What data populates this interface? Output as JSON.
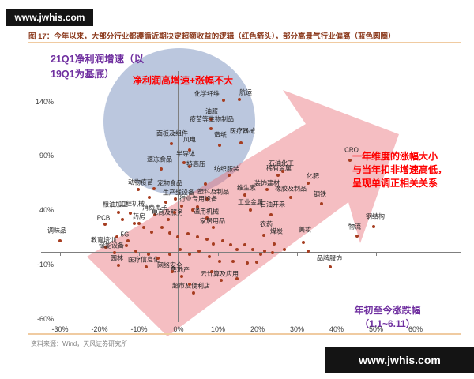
{
  "watermark": {
    "text": "www.jwhis.com"
  },
  "title": "图 17：今年以来，大部分行业都遵循近期决定超额收益的逻辑（红色箭头），部分高景气行业偏离（蓝色圆圈）",
  "source": "资料来源：Wind，天风证券研究所",
  "colors": {
    "circle_blue": "rgba(141,162,200,0.6)",
    "arrow_pink": "rgba(232,110,120,0.45)",
    "axis_gray": "#7f7f7f",
    "dot_red": "#a63d20",
    "annotation_red": "#fe0000",
    "annotation_purple": "#7030a0",
    "title_brown": "#8c3b1e"
  },
  "annotations": {
    "y_axis_title_line1": "21Q1净利润增速（以",
    "y_axis_title_line2": "19Q1为基底）",
    "blue_note": "净利润高增速+涨幅不大",
    "right_note_line1": "一年维度的涨幅大小",
    "right_note_line2": "与当年扣非增速高低，",
    "right_note_line3": "呈现单调正相关关系",
    "x_axis_title_line1": "年初至今涨跌幅",
    "x_axis_title_line2": "（1.1~6.11）"
  },
  "chart_data": {
    "type": "scatter",
    "title": "",
    "xlabel": "年初至今涨跌幅（1.1~6.11）",
    "ylabel": "21Q1净利润增速（以19Q1为基底）",
    "xlim": [
      -35,
      65
    ],
    "ylim": [
      -70,
      160
    ],
    "grid": false,
    "x_ticks": [
      -30,
      -20,
      -10,
      0,
      10,
      20,
      30,
      40,
      50,
      60
    ],
    "y_ticks": [
      140,
      90,
      40,
      -10,
      -60
    ],
    "points": [
      {
        "label": "化学纤维",
        "x": 11.4,
        "y": 141,
        "lox": -21,
        "loy": -8
      },
      {
        "label": "航运",
        "x": 15.4,
        "y": 142,
        "lox": 8,
        "loy": -9
      },
      {
        "label": "油服",
        "x": 8.2,
        "y": 124,
        "lox": 1,
        "loy": -10
      },
      {
        "label": "疫苗等生物制品",
        "x": 8.2,
        "y": 115,
        "lox": 1,
        "loy": -12
      },
      {
        "label": "面板及组件",
        "x": -1.8,
        "y": 101,
        "lox": 1,
        "loy": -13
      },
      {
        "label": "医疗器械",
        "x": 15.8,
        "y": 102,
        "lox": 2,
        "loy": -15
      },
      {
        "label": "造纸",
        "x": 10.4,
        "y": 100,
        "lox": 1,
        "loy": -13
      },
      {
        "label": "风电",
        "x": 2.8,
        "y": 95,
        "lox": 0,
        "loy": -13
      },
      {
        "label": "半导体",
        "x": 1.4,
        "y": 84,
        "lox": 2,
        "loy": -11
      },
      {
        "label": "速冻食品",
        "x": -4.4,
        "y": 78,
        "lox": -2,
        "loy": -12
      },
      {
        "label": "特高压",
        "x": 2.8,
        "y": 80,
        "lox": 8,
        "loy": -3
      },
      {
        "label": "动物疫苗",
        "x": -10.2,
        "y": 59,
        "lox": 3,
        "loy": -9
      },
      {
        "label": "宠物食品",
        "x": -6.2,
        "y": 60,
        "lox": 20,
        "loy": -7
      },
      {
        "label": "生产线设备",
        "x": -0.8,
        "y": 50,
        "lox": 4,
        "loy": -8
      },
      {
        "label": "塑料及制品",
        "x": 7.2,
        "y": 50,
        "lox": 8,
        "loy": -9
      },
      {
        "label": "行业专用设备",
        "x": 4.8,
        "y": 43,
        "lox": 1,
        "loy": -10
      },
      {
        "label": "维生素",
        "x": 16.8,
        "y": 54,
        "lox": 2,
        "loy": -9
      },
      {
        "label": "装饰建材",
        "x": 22.4,
        "y": 59,
        "lox": 0,
        "loy": -8
      },
      {
        "label": "稀有金属",
        "x": 25.2,
        "y": 72,
        "lox": 1,
        "loy": -9
      },
      {
        "label": "石油化工",
        "x": 26.4,
        "y": 76,
        "lox": -2,
        "loy": -10
      },
      {
        "label": "化肥",
        "x": 32.8,
        "y": 65,
        "lox": 6,
        "loy": -9
      },
      {
        "label": "橡胶及制品",
        "x": 28.4,
        "y": 52,
        "lox": 0,
        "loy": -11
      },
      {
        "label": "钢铁",
        "x": 36.2,
        "y": 46,
        "lox": -2,
        "loy": -12
      },
      {
        "label": "工业金属",
        "x": 18.2,
        "y": 40,
        "lox": 0,
        "loy": -10
      },
      {
        "label": "石油开采",
        "x": 23.4,
        "y": 36,
        "lox": 2,
        "loy": -13
      },
      {
        "label": "农药",
        "x": 21.6,
        "y": 17,
        "lox": 3,
        "loy": -14
      },
      {
        "label": "煤炭",
        "x": 24.2,
        "y": 9,
        "lox": 3,
        "loy": -16
      },
      {
        "label": "美妆",
        "x": 31.6,
        "y": 10,
        "lox": 2,
        "loy": -16
      },
      {
        "label": "物流",
        "x": 45.2,
        "y": 16,
        "lox": -3,
        "loy": -12
      },
      {
        "label": "钢结构",
        "x": 49.4,
        "y": 25,
        "lox": 2,
        "loy": -13
      },
      {
        "label": "品牌服饰",
        "x": 38.4,
        "y": -12,
        "lox": -1,
        "loy": -11
      },
      {
        "label": "CRO",
        "x": 43.4,
        "y": 86,
        "lox": 2,
        "loy": -13
      },
      {
        "label": "粮油加工",
        "x": -15.2,
        "y": 38,
        "lox": -4,
        "loy": -10
      },
      {
        "label": "工程机械",
        "x": -12.2,
        "y": 37,
        "lox": 2,
        "loy": -12
      },
      {
        "label": "消费电子",
        "x": -6,
        "y": 36,
        "lox": 0,
        "loy": -9
      },
      {
        "label": "电商及服务",
        "x": -2.6,
        "y": 31,
        "lox": -1,
        "loy": -9
      },
      {
        "label": "PCB",
        "x": -18.6,
        "y": 27,
        "lox": -2,
        "loy": -8
      },
      {
        "label": "药房",
        "x": -10,
        "y": 28,
        "lox": 0,
        "loy": -9
      },
      {
        "label": "调味品",
        "x": -30,
        "y": 12,
        "lox": -4,
        "loy": -13
      },
      {
        "label": "教育培训",
        "x": -18.4,
        "y": 6,
        "lox": -3,
        "loy": -9
      },
      {
        "label": "储能设备",
        "x": -16.2,
        "y": 1,
        "lox": -4,
        "loy": -9
      },
      {
        "label": "5G",
        "x": -12.8,
        "y": 12,
        "lox": -4,
        "loy": -8
      },
      {
        "label": "通用机械",
        "x": 7.2,
        "y": 33,
        "lox": -1,
        "loy": -8
      },
      {
        "label": "家居用品",
        "x": 8.8,
        "y": 24,
        "lox": -1,
        "loy": -8
      },
      {
        "label": "园林",
        "x": -15.2,
        "y": -11,
        "lox": -2,
        "loy": -9
      },
      {
        "label": "医疗信息化",
        "x": -8.2,
        "y": -12,
        "lox": -3,
        "loy": -9
      },
      {
        "label": "云计算及应用",
        "x": 10.8,
        "y": -25,
        "lox": -2,
        "loy": -8
      },
      {
        "label": "超市及便利店",
        "x": 3.8,
        "y": -36,
        "lox": -3,
        "loy": -9
      },
      {
        "label": "房地产",
        "x": 0.8,
        "y": -21,
        "lox": -2,
        "loy": -8
      },
      {
        "label": "网络安全",
        "x": -1.6,
        "y": -17,
        "lox": -3,
        "loy": -8
      },
      {
        "label": "纺织服装",
        "x": 12.8,
        "y": 72,
        "lox": -3,
        "loy": -8
      }
    ],
    "extra_points": [
      [
        -14.2,
        31
      ],
      [
        -11.2,
        28
      ],
      [
        -8.8,
        24
      ],
      [
        -6.8,
        20
      ],
      [
        -4.2,
        24
      ],
      [
        -2.2,
        19
      ],
      [
        -0.2,
        15
      ],
      [
        2.4,
        18
      ],
      [
        4.8,
        15
      ],
      [
        7.2,
        13
      ],
      [
        8.8,
        9
      ],
      [
        11.2,
        12
      ],
      [
        13.2,
        8
      ],
      [
        14.8,
        4
      ],
      [
        16.8,
        8
      ],
      [
        18.8,
        4
      ],
      [
        -15.6,
        15
      ],
      [
        -13.2,
        7
      ],
      [
        -10.8,
        2
      ],
      [
        -7.6,
        -1
      ],
      [
        -5.2,
        -4
      ],
      [
        -2.2,
        -1
      ],
      [
        0.4,
        4
      ],
      [
        2.8,
        -1
      ],
      [
        5.2,
        2
      ],
      [
        7.8,
        -3
      ],
      [
        10.4,
        -7
      ],
      [
        13.8,
        -7
      ],
      [
        21.8,
        2
      ],
      [
        26.8,
        4
      ],
      [
        32.8,
        2
      ],
      [
        8.4,
        -17
      ],
      [
        14.8,
        -23
      ],
      [
        2.8,
        -28
      ],
      [
        20.8,
        -1
      ],
      [
        23.8,
        1
      ],
      [
        6.8,
        64
      ],
      [
        19.8,
        -8
      ],
      [
        17.4,
        -9
      ],
      [
        -7.5,
        52
      ],
      [
        -3.2,
        47
      ],
      [
        0.8,
        44
      ],
      [
        3.6,
        40
      ],
      [
        -1,
        38
      ]
    ],
    "legend": null
  }
}
